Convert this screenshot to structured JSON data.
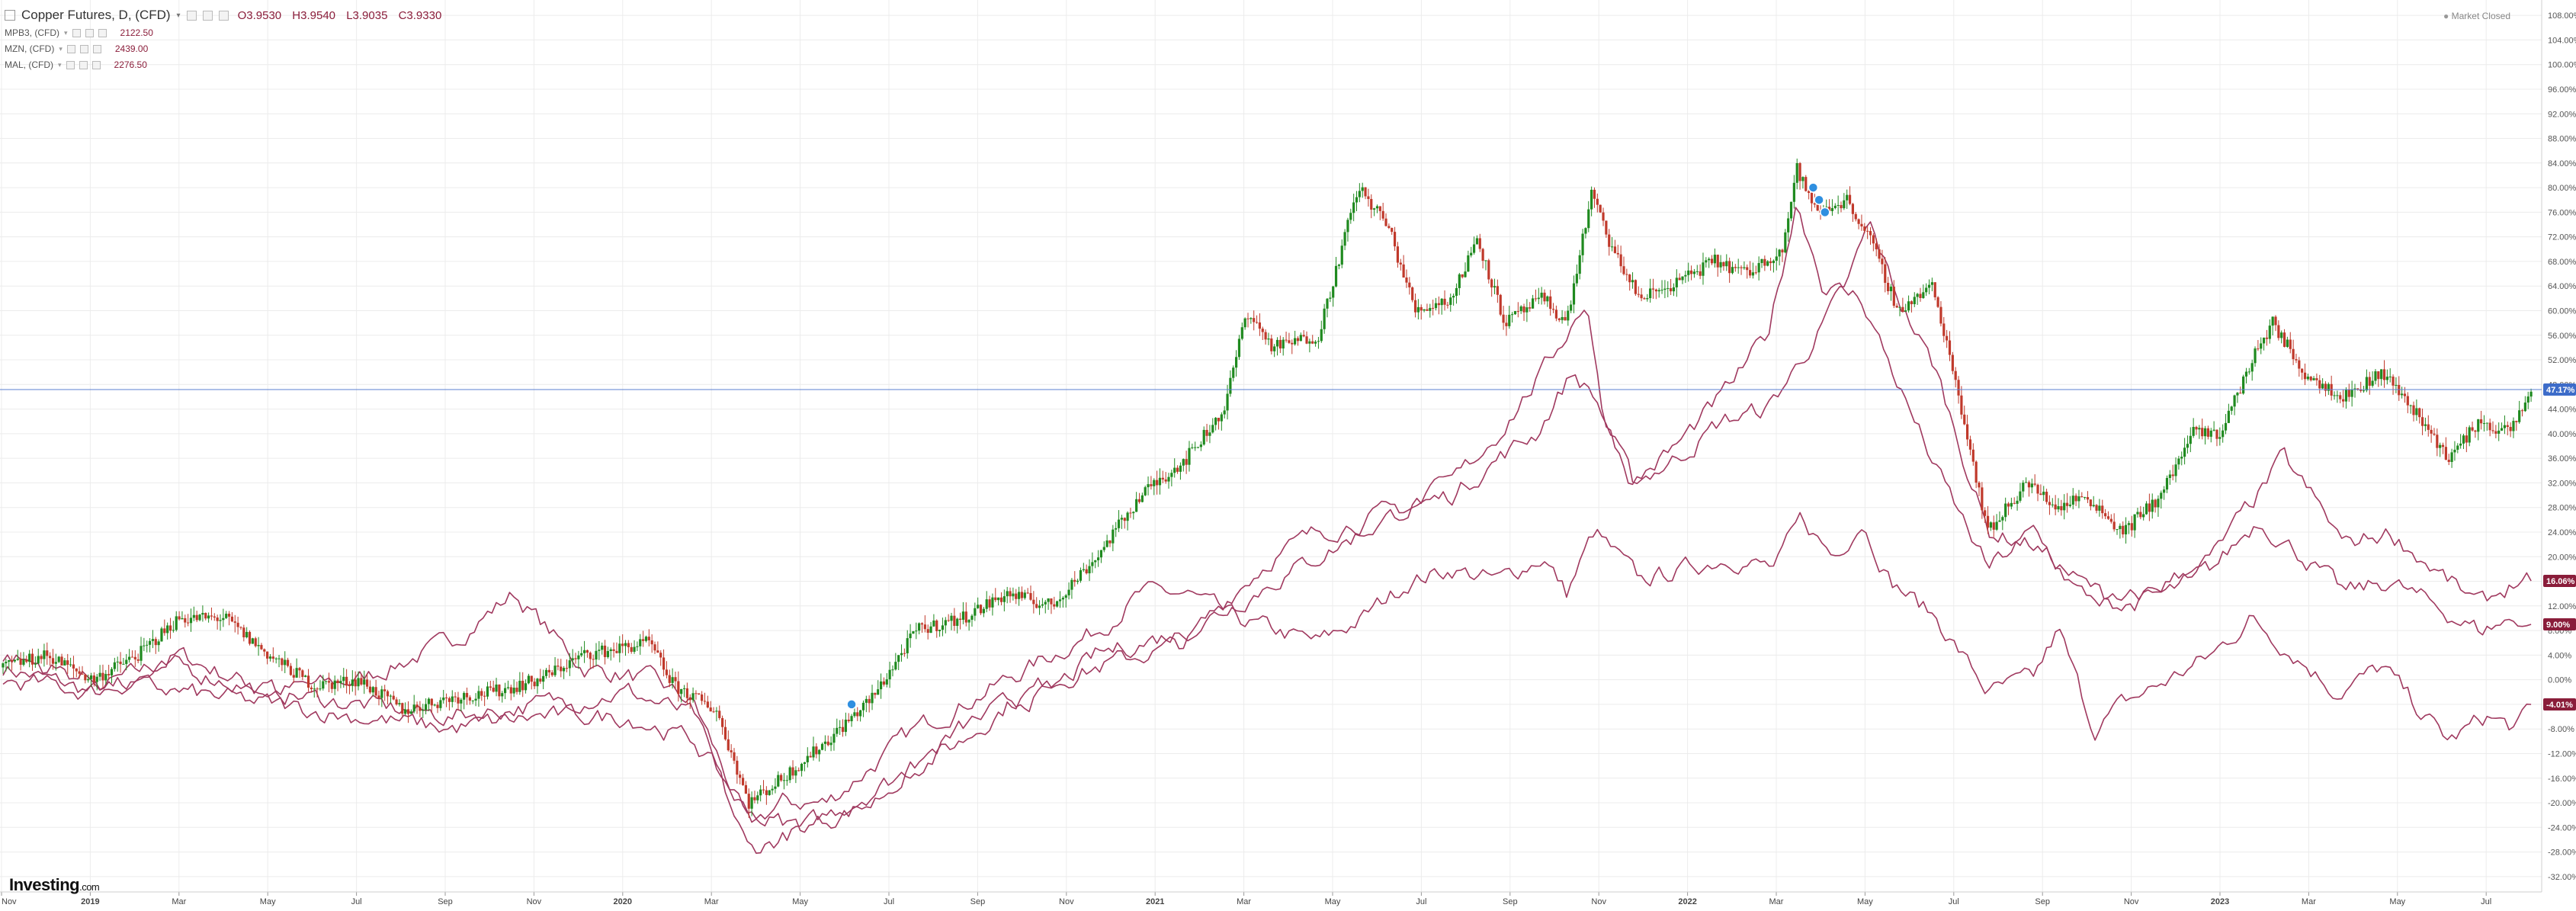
{
  "header": {
    "title": "Copper Futures, D, (CFD)",
    "open": "O3.9530",
    "high": "H3.9540",
    "low": "L3.9035",
    "close": "C3.9330",
    "market_status": "Market Closed"
  },
  "compare": [
    {
      "label": "MPB3, (CFD)",
      "value": "2122.50"
    },
    {
      "label": "MZN, (CFD)",
      "value": "2439.00"
    },
    {
      "label": "MAL, (CFD)",
      "value": "2276.50"
    }
  ],
  "logo": {
    "text": "Investing",
    "suffix": ".com"
  },
  "colors": {
    "up": "#1f8a1f",
    "down": "#c0392b",
    "compare": "#a0395f",
    "price_line": "#5b7fd1",
    "badge_blue": "#3d6cc9",
    "badge_maroon": "#8a1d3a"
  },
  "chart_data": {
    "type": "line",
    "title": "Copper Futures, D, (CFD)",
    "y_unit": "%",
    "ylim": [
      -34,
      110
    ],
    "y_ticks": [
      "108.00%",
      "104.00%",
      "100.00%",
      "96.00%",
      "92.00%",
      "88.00%",
      "84.00%",
      "80.00%",
      "76.00%",
      "72.00%",
      "68.00%",
      "64.00%",
      "60.00%",
      "56.00%",
      "52.00%",
      "48.00%",
      "44.00%",
      "40.00%",
      "36.00%",
      "32.00%",
      "28.00%",
      "24.00%",
      "20.00%",
      "16.00%",
      "12.00%",
      "8.00%",
      "4.00%",
      "0.00%",
      "-4.00%",
      "-8.00%",
      "-12.00%",
      "-16.00%",
      "-20.00%",
      "-24.00%",
      "-28.00%",
      "-32.00%"
    ],
    "x_ticks": [
      "Nov",
      "2019",
      "Mar",
      "May",
      "Jul",
      "Sep",
      "Nov",
      "2020",
      "Mar",
      "May",
      "Jul",
      "Sep",
      "Nov",
      "2021",
      "Mar",
      "May",
      "Jul",
      "Sep",
      "Nov",
      "2022",
      "Mar",
      "May",
      "Jul",
      "Sep",
      "Nov",
      "2023",
      "Mar",
      "May",
      "Jul"
    ],
    "x_start": "2018-11-01",
    "x_end": "2023-07-21",
    "grid": true,
    "last_price_line": 47.17,
    "badges": [
      {
        "text": "47.17%",
        "value": 47.17,
        "color": "blue"
      },
      {
        "text": "16.06%",
        "value": 16.06,
        "color": "maroon"
      },
      {
        "text": "9.00%",
        "value": 9.0,
        "color": "maroon"
      },
      {
        "text": "-4.01%",
        "value": -4.01,
        "color": "maroon"
      }
    ],
    "event_markers": [
      {
        "date": "2020-06-01",
        "value": -4.0
      },
      {
        "date": "2022-03-18",
        "value": 80.0
      },
      {
        "date": "2022-03-22",
        "value": 78.0
      },
      {
        "date": "2022-03-26",
        "value": 76.0
      }
    ],
    "series": [
      {
        "name": "Copper Futures, D, (CFD)",
        "style": "candlestick",
        "points": [
          [
            "2018-11-01",
            2.0
          ],
          [
            "2018-12-01",
            4.0
          ],
          [
            "2019-01-01",
            0.0
          ],
          [
            "2019-02-01",
            4.0
          ],
          [
            "2019-03-01",
            10.0
          ],
          [
            "2019-04-01",
            10.0
          ],
          [
            "2019-05-01",
            4.0
          ],
          [
            "2019-06-01",
            -1.0
          ],
          [
            "2019-07-01",
            0.0
          ],
          [
            "2019-08-01",
            -5.0
          ],
          [
            "2019-09-01",
            -3.0
          ],
          [
            "2019-10-01",
            -2.0
          ],
          [
            "2019-11-01",
            0.0
          ],
          [
            "2019-12-01",
            4.0
          ],
          [
            "2020-01-15",
            6.0
          ],
          [
            "2020-02-01",
            -1.0
          ],
          [
            "2020-03-01",
            -5.0
          ],
          [
            "2020-03-23",
            -20.0
          ],
          [
            "2020-04-15",
            -16.0
          ],
          [
            "2020-05-15",
            -10.0
          ],
          [
            "2020-06-15",
            -3.0
          ],
          [
            "2020-07-15",
            8.0
          ],
          [
            "2020-08-15",
            10.0
          ],
          [
            "2020-09-15",
            14.0
          ],
          [
            "2020-10-15",
            12.0
          ],
          [
            "2020-11-15",
            20.0
          ],
          [
            "2020-12-15",
            30.0
          ],
          [
            "2021-01-15",
            36.0
          ],
          [
            "2021-02-10",
            44.0
          ],
          [
            "2021-02-25",
            60.0
          ],
          [
            "2021-03-15",
            54.0
          ],
          [
            "2021-04-15",
            56.0
          ],
          [
            "2021-05-12",
            80.0
          ],
          [
            "2021-06-01",
            74.0
          ],
          [
            "2021-06-20",
            60.0
          ],
          [
            "2021-07-15",
            62.0
          ],
          [
            "2021-08-01",
            72.0
          ],
          [
            "2021-08-20",
            58.0
          ],
          [
            "2021-09-15",
            62.0
          ],
          [
            "2021-10-01",
            58.0
          ],
          [
            "2021-10-18",
            79.0
          ],
          [
            "2021-11-01",
            70.0
          ],
          [
            "2021-11-20",
            62.0
          ],
          [
            "2021-12-10",
            64.0
          ],
          [
            "2022-01-10",
            68.0
          ],
          [
            "2022-02-01",
            66.0
          ],
          [
            "2022-02-25",
            70.0
          ],
          [
            "2022-03-07",
            83.0
          ],
          [
            "2022-03-20",
            76.0
          ],
          [
            "2022-04-10",
            78.0
          ],
          [
            "2022-04-25",
            72.0
          ],
          [
            "2022-05-15",
            60.0
          ],
          [
            "2022-06-07",
            64.0
          ],
          [
            "2022-06-20",
            52.0
          ],
          [
            "2022-07-15",
            24.0
          ],
          [
            "2022-08-10",
            32.0
          ],
          [
            "2022-09-01",
            28.0
          ],
          [
            "2022-09-20",
            30.0
          ],
          [
            "2022-10-15",
            24.0
          ],
          [
            "2022-11-10",
            30.0
          ],
          [
            "2022-12-01",
            40.0
          ],
          [
            "2022-12-20",
            40.0
          ],
          [
            "2023-01-15",
            54.0
          ],
          [
            "2023-01-25",
            58.0
          ],
          [
            "2023-02-15",
            50.0
          ],
          [
            "2023-03-15",
            46.0
          ],
          [
            "2023-04-10",
            50.0
          ],
          [
            "2023-05-01",
            44.0
          ],
          [
            "2023-05-25",
            36.0
          ],
          [
            "2023-06-15",
            42.0
          ],
          [
            "2023-07-05",
            40.0
          ],
          [
            "2023-07-21",
            47.17
          ]
        ]
      },
      {
        "name": "MPB3, (CFD)",
        "style": "line",
        "points": [
          [
            "2018-11-01",
            2.0
          ],
          [
            "2019-01-01",
            -2.0
          ],
          [
            "2019-03-01",
            4.0
          ],
          [
            "2019-05-01",
            -2.0
          ],
          [
            "2019-07-01",
            0.0
          ],
          [
            "2019-09-01",
            6.0
          ],
          [
            "2019-10-15",
            14.0
          ],
          [
            "2019-12-01",
            2.0
          ],
          [
            "2020-01-15",
            0.0
          ],
          [
            "2020-02-15",
            -4.0
          ],
          [
            "2020-03-23",
            -24.0
          ],
          [
            "2020-04-15",
            -20.0
          ],
          [
            "2020-05-15",
            -20.0
          ],
          [
            "2020-06-15",
            -14.0
          ],
          [
            "2020-07-15",
            -8.0
          ],
          [
            "2020-08-15",
            -4.0
          ],
          [
            "2020-09-15",
            0.0
          ],
          [
            "2020-10-15",
            4.0
          ],
          [
            "2020-11-15",
            8.0
          ],
          [
            "2020-12-15",
            14.0
          ],
          [
            "2021-01-15",
            14.0
          ],
          [
            "2021-02-15",
            10.0
          ],
          [
            "2021-03-15",
            8.0
          ],
          [
            "2021-04-15",
            6.0
          ],
          [
            "2021-05-15",
            10.0
          ],
          [
            "2021-06-15",
            16.0
          ],
          [
            "2021-07-15",
            18.0
          ],
          [
            "2021-08-15",
            16.0
          ],
          [
            "2021-09-15",
            20.0
          ],
          [
            "2021-10-01",
            14.0
          ],
          [
            "2021-10-20",
            24.0
          ],
          [
            "2021-11-20",
            16.0
          ],
          [
            "2021-12-20",
            18.0
          ],
          [
            "2022-01-20",
            20.0
          ],
          [
            "2022-02-20",
            18.0
          ],
          [
            "2022-03-10",
            26.0
          ],
          [
            "2022-04-01",
            20.0
          ],
          [
            "2022-04-20",
            26.0
          ],
          [
            "2022-05-10",
            16.0
          ],
          [
            "2022-06-10",
            10.0
          ],
          [
            "2022-07-15",
            -2.0
          ],
          [
            "2022-08-15",
            0.0
          ],
          [
            "2022-09-01",
            8.0
          ],
          [
            "2022-09-25",
            -8.0
          ],
          [
            "2022-10-15",
            -4.0
          ],
          [
            "2022-11-15",
            0.0
          ],
          [
            "2022-12-15",
            4.0
          ],
          [
            "2023-01-10",
            10.0
          ],
          [
            "2023-02-10",
            4.0
          ],
          [
            "2023-03-10",
            -2.0
          ],
          [
            "2023-04-10",
            2.0
          ],
          [
            "2023-05-01",
            -4.0
          ],
          [
            "2023-05-25",
            -10.0
          ],
          [
            "2023-06-20",
            -6.0
          ],
          [
            "2023-07-10",
            -8.0
          ],
          [
            "2023-07-21",
            -4.01
          ]
        ]
      },
      {
        "name": "MZN, (CFD)",
        "style": "line",
        "points": [
          [
            "2018-11-01",
            0.0
          ],
          [
            "2019-01-01",
            -2.0
          ],
          [
            "2019-03-01",
            2.0
          ],
          [
            "2019-05-01",
            -2.0
          ],
          [
            "2019-07-01",
            -4.0
          ],
          [
            "2019-09-01",
            -6.0
          ],
          [
            "2019-11-01",
            -4.0
          ],
          [
            "2020-01-01",
            -2.0
          ],
          [
            "2020-02-15",
            -6.0
          ],
          [
            "2020-03-23",
            -28.0
          ],
          [
            "2020-05-01",
            -24.0
          ],
          [
            "2020-06-15",
            -18.0
          ],
          [
            "2020-07-15",
            -14.0
          ],
          [
            "2020-08-15",
            -10.0
          ],
          [
            "2020-09-15",
            -4.0
          ],
          [
            "2020-10-15",
            0.0
          ],
          [
            "2020-11-15",
            2.0
          ],
          [
            "2020-12-15",
            4.0
          ],
          [
            "2021-01-15",
            6.0
          ],
          [
            "2021-02-15",
            14.0
          ],
          [
            "2021-03-15",
            20.0
          ],
          [
            "2021-04-15",
            24.0
          ],
          [
            "2021-05-15",
            26.0
          ],
          [
            "2021-06-15",
            28.0
          ],
          [
            "2021-07-15",
            30.0
          ],
          [
            "2021-08-15",
            36.0
          ],
          [
            "2021-09-10",
            40.0
          ],
          [
            "2021-10-05",
            50.0
          ],
          [
            "2021-10-20",
            46.0
          ],
          [
            "2021-11-15",
            32.0
          ],
          [
            "2021-12-15",
            36.0
          ],
          [
            "2022-01-15",
            42.0
          ],
          [
            "2022-02-15",
            44.0
          ],
          [
            "2022-03-10",
            52.0
          ],
          [
            "2022-04-10",
            64.0
          ],
          [
            "2022-04-25",
            74.0
          ],
          [
            "2022-05-15",
            62.0
          ],
          [
            "2022-06-10",
            50.0
          ],
          [
            "2022-07-15",
            24.0
          ],
          [
            "2022-08-15",
            22.0
          ],
          [
            "2022-09-15",
            16.0
          ],
          [
            "2022-10-15",
            12.0
          ],
          [
            "2022-11-15",
            14.0
          ],
          [
            "2022-12-15",
            18.0
          ],
          [
            "2023-01-15",
            26.0
          ],
          [
            "2023-02-15",
            20.0
          ],
          [
            "2023-03-15",
            14.0
          ],
          [
            "2023-04-15",
            16.0
          ],
          [
            "2023-05-15",
            12.0
          ],
          [
            "2023-06-15",
            8.0
          ],
          [
            "2023-07-10",
            10.0
          ],
          [
            "2023-07-21",
            9.0
          ]
        ]
      },
      {
        "name": "MAL, (CFD)",
        "style": "line",
        "points": [
          [
            "2018-11-01",
            4.0
          ],
          [
            "2019-01-01",
            0.0
          ],
          [
            "2019-03-01",
            -2.0
          ],
          [
            "2019-05-01",
            -4.0
          ],
          [
            "2019-07-01",
            -6.0
          ],
          [
            "2019-09-01",
            -8.0
          ],
          [
            "2019-11-01",
            -6.0
          ],
          [
            "2020-01-01",
            -6.0
          ],
          [
            "2020-02-15",
            -10.0
          ],
          [
            "2020-03-23",
            -22.0
          ],
          [
            "2020-05-01",
            -24.0
          ],
          [
            "2020-06-15",
            -20.0
          ],
          [
            "2020-07-15",
            -14.0
          ],
          [
            "2020-08-15",
            -8.0
          ],
          [
            "2020-09-15",
            -4.0
          ],
          [
            "2020-10-15",
            -2.0
          ],
          [
            "2020-11-15",
            4.0
          ],
          [
            "2020-12-15",
            6.0
          ],
          [
            "2021-01-15",
            8.0
          ],
          [
            "2021-02-15",
            12.0
          ],
          [
            "2021-03-15",
            16.0
          ],
          [
            "2021-04-15",
            20.0
          ],
          [
            "2021-05-15",
            24.0
          ],
          [
            "2021-06-15",
            28.0
          ],
          [
            "2021-07-15",
            32.0
          ],
          [
            "2021-08-15",
            40.0
          ],
          [
            "2021-09-15",
            50.0
          ],
          [
            "2021-10-15",
            62.0
          ],
          [
            "2021-10-25",
            44.0
          ],
          [
            "2021-11-15",
            32.0
          ],
          [
            "2021-12-15",
            38.0
          ],
          [
            "2022-01-15",
            46.0
          ],
          [
            "2022-02-15",
            56.0
          ],
          [
            "2022-03-07",
            78.0
          ],
          [
            "2022-03-25",
            64.0
          ],
          [
            "2022-04-20",
            62.0
          ],
          [
            "2022-05-15",
            48.0
          ],
          [
            "2022-06-10",
            34.0
          ],
          [
            "2022-07-15",
            18.0
          ],
          [
            "2022-08-15",
            24.0
          ],
          [
            "2022-09-15",
            14.0
          ],
          [
            "2022-10-15",
            12.0
          ],
          [
            "2022-11-15",
            16.0
          ],
          [
            "2022-12-15",
            20.0
          ],
          [
            "2023-01-15",
            30.0
          ],
          [
            "2023-02-01",
            36.0
          ],
          [
            "2023-02-20",
            30.0
          ],
          [
            "2023-03-15",
            22.0
          ],
          [
            "2023-04-15",
            24.0
          ],
          [
            "2023-05-15",
            18.0
          ],
          [
            "2023-06-15",
            12.0
          ],
          [
            "2023-07-10",
            16.0
          ],
          [
            "2023-07-21",
            16.06
          ]
        ]
      }
    ]
  }
}
